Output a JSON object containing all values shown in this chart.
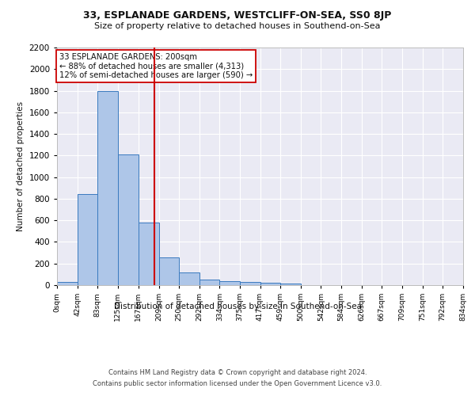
{
  "title": "33, ESPLANADE GARDENS, WESTCLIFF-ON-SEA, SS0 8JP",
  "subtitle": "Size of property relative to detached houses in Southend-on-Sea",
  "xlabel": "Distribution of detached houses by size in Southend-on-Sea",
  "ylabel": "Number of detached properties",
  "bin_edges": [
    0,
    42,
    83,
    125,
    167,
    209,
    250,
    292,
    334,
    375,
    417,
    459,
    500,
    542,
    584,
    626,
    667,
    709,
    751,
    792,
    834
  ],
  "bin_labels": [
    "0sqm",
    "42sqm",
    "83sqm",
    "125sqm",
    "167sqm",
    "209sqm",
    "250sqm",
    "292sqm",
    "334sqm",
    "375sqm",
    "417sqm",
    "459sqm",
    "500sqm",
    "542sqm",
    "584sqm",
    "626sqm",
    "667sqm",
    "709sqm",
    "751sqm",
    "792sqm",
    "834sqm"
  ],
  "bar_heights": [
    30,
    840,
    1800,
    1210,
    580,
    255,
    120,
    50,
    40,
    30,
    20,
    15,
    0,
    0,
    0,
    0,
    0,
    0,
    0,
    0
  ],
  "bar_color": "#aec6e8",
  "bar_edge_color": "#3a7abf",
  "vline_x": 200,
  "vline_color": "#cc0000",
  "annotation_text": "33 ESPLANADE GARDENS: 200sqm\n← 88% of detached houses are smaller (4,313)\n12% of semi-detached houses are larger (590) →",
  "annotation_box_color": "#ffffff",
  "annotation_box_edge": "#cc0000",
  "ylim": [
    0,
    2200
  ],
  "yticks": [
    0,
    200,
    400,
    600,
    800,
    1000,
    1200,
    1400,
    1600,
    1800,
    2000,
    2200
  ],
  "plot_bg_color": "#eaeaf4",
  "footer_line1": "Contains HM Land Registry data © Crown copyright and database right 2024.",
  "footer_line2": "Contains public sector information licensed under the Open Government Licence v3.0."
}
